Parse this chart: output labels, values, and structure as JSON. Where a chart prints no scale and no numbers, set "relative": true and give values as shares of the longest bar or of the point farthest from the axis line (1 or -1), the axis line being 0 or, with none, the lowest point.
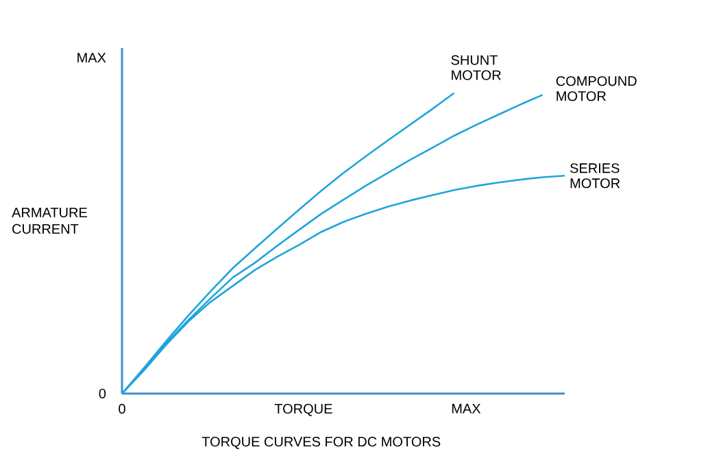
{
  "chart_data": {
    "type": "line",
    "title": "TORQUE CURVES FOR DC MOTORS",
    "xlabel": "TORQUE",
    "ylabel": "ARMATURE CURRENT",
    "relative": true,
    "annotations": [
      "0",
      "MAX",
      "0",
      "MAX"
    ],
    "legend": false,
    "marker": "none",
    "line_style": "solid",
    "categories": [
      null,
      null,
      null,
      null,
      null,
      null,
      null,
      null,
      null,
      null,
      null,
      null,
      null,
      null,
      null,
      null,
      null,
      null,
      null,
      null,
      null
    ],
    "series": [
      {
        "name": "SHUNT MOTOR",
        "color": "#1fa4dc",
        "values": [
          0,
          0.086,
          0.175,
          0.26,
          0.34,
          0.417,
          0.483,
          0.548,
          0.612,
          0.675,
          0.734,
          0.789,
          0.842,
          0.894,
          0.946,
          1,
          null,
          null,
          null,
          null,
          null
        ]
      },
      {
        "name": "COMPOUND MOTOR",
        "color": "#1fa4dc",
        "values": [
          0,
          0.082,
          0.168,
          0.245,
          0.317,
          0.386,
          0.435,
          0.491,
          0.545,
          0.598,
          0.645,
          0.691,
          0.734,
          0.777,
          0.817,
          0.858,
          0.894,
          0.928,
          0.962,
          0.994,
          null
        ]
      },
      {
        "name": "SERIES MOTOR",
        "color": "#1fa4dc",
        "values": [
          0,
          0.078,
          0.163,
          0.24,
          0.305,
          0.358,
          0.411,
          0.455,
          0.495,
          0.538,
          0.571,
          0.598,
          0.622,
          0.642,
          0.66,
          0.677,
          0.691,
          0.702,
          0.712,
          0.72,
          0.725
        ]
      }
    ]
  }
}
